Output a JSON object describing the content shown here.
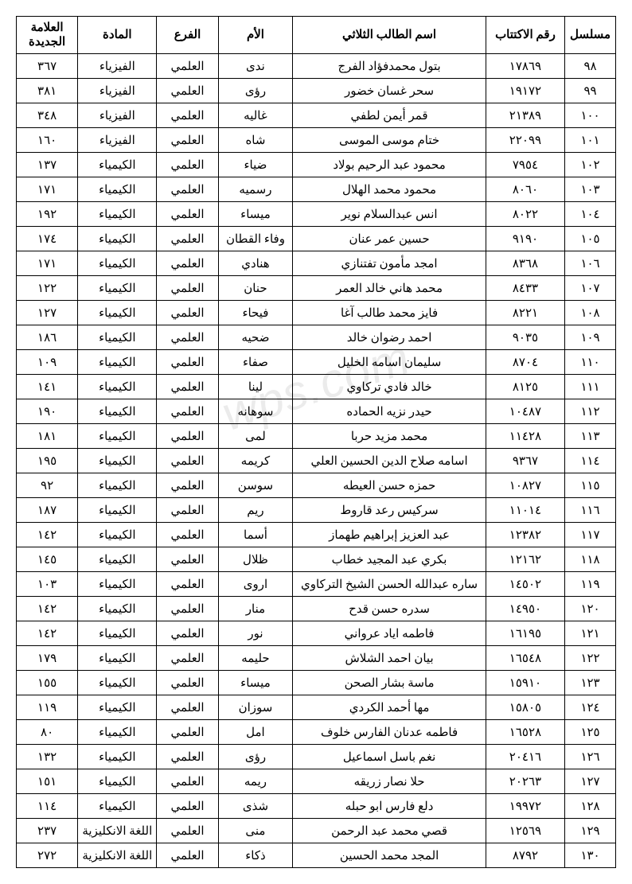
{
  "watermark": "wps.com",
  "headers": {
    "serial": "مسلسل",
    "subscription": "رقم الاكتتاب",
    "name": "اسم الطالب الثلاثي",
    "mother": "الأم",
    "branch": "الفرع",
    "subject": "المادة",
    "grade": "العلامة الجديدة"
  },
  "rows": [
    {
      "serial": "٩٨",
      "sub": "١٧٨٦٩",
      "name": "بتول محمدفؤاد الفرج",
      "mother": "ندى",
      "branch": "العلمي",
      "subject": "الفيزياء",
      "grade": "٣٦٧"
    },
    {
      "serial": "٩٩",
      "sub": "١٩١٧٢",
      "name": "سحر غسان خضور",
      "mother": "رؤى",
      "branch": "العلمي",
      "subject": "الفيزياء",
      "grade": "٣٨١"
    },
    {
      "serial": "١٠٠",
      "sub": "٢١٣٨٩",
      "name": "قمر أيمن لطفي",
      "mother": "غاليه",
      "branch": "العلمي",
      "subject": "الفيزياء",
      "grade": "٣٤٨"
    },
    {
      "serial": "١٠١",
      "sub": "٢٢٠٩٩",
      "name": "ختام موسى الموسى",
      "mother": "شاه",
      "branch": "العلمي",
      "subject": "الفيزياء",
      "grade": "١٦٠"
    },
    {
      "serial": "١٠٢",
      "sub": "٧٩٥٤",
      "name": "محمود عبد الرحيم بولاد",
      "mother": "ضياء",
      "branch": "العلمي",
      "subject": "الكيمياء",
      "grade": "١٣٧"
    },
    {
      "serial": "١٠٣",
      "sub": "٨٠٦٠",
      "name": "محمود محمد الهلال",
      "mother": "رسميه",
      "branch": "العلمي",
      "subject": "الكيمياء",
      "grade": "١٧١"
    },
    {
      "serial": "١٠٤",
      "sub": "٨٠٢٢",
      "name": "انس عبدالسلام نوير",
      "mother": "ميساء",
      "branch": "العلمي",
      "subject": "الكيمياء",
      "grade": "١٩٢"
    },
    {
      "serial": "١٠٥",
      "sub": "٩١٩٠",
      "name": "حسين عمر عنان",
      "mother": "وفاء القطان",
      "branch": "العلمي",
      "subject": "الكيمياء",
      "grade": "١٧٤"
    },
    {
      "serial": "١٠٦",
      "sub": "٨٣٦٨",
      "name": "امجد مأمون تفتنازي",
      "mother": "هنادي",
      "branch": "العلمي",
      "subject": "الكيمياء",
      "grade": "١٧١"
    },
    {
      "serial": "١٠٧",
      "sub": "٨٤٣٣",
      "name": "محمد هاني خالد العمر",
      "mother": "حنان",
      "branch": "العلمي",
      "subject": "الكيمياء",
      "grade": "١٢٢"
    },
    {
      "serial": "١٠٨",
      "sub": "٨٢٢١",
      "name": "فايز محمد طالب آغا",
      "mother": "فيحاء",
      "branch": "العلمي",
      "subject": "الكيمياء",
      "grade": "١٢٧"
    },
    {
      "serial": "١٠٩",
      "sub": "٩٠٣٥",
      "name": "احمد رضوان خالد",
      "mother": "ضحيه",
      "branch": "العلمي",
      "subject": "الكيمياء",
      "grade": "١٨٦"
    },
    {
      "serial": "١١٠",
      "sub": "٨٧٠٤",
      "name": "سليمان اسامه الخليل",
      "mother": "صفاء",
      "branch": "العلمي",
      "subject": "الكيمياء",
      "grade": "١٠٩"
    },
    {
      "serial": "١١١",
      "sub": "٨١٢٥",
      "name": "خالد فادي تركاوي",
      "mother": "لينا",
      "branch": "العلمي",
      "subject": "الكيمياء",
      "grade": "١٤١"
    },
    {
      "serial": "١١٢",
      "sub": "١٠٤٨٧",
      "name": "حيدر نزيه الحماده",
      "mother": "سوهانه",
      "branch": "العلمي",
      "subject": "الكيمياء",
      "grade": "١٩٠"
    },
    {
      "serial": "١١٣",
      "sub": "١١٤٢٨",
      "name": "محمد مزيد حربا",
      "mother": "لمى",
      "branch": "العلمي",
      "subject": "الكيمياء",
      "grade": "١٨١"
    },
    {
      "serial": "١١٤",
      "sub": "٩٣٦٧",
      "name": "اسامه صلاح الدين الحسين العلي",
      "mother": "كريمه",
      "branch": "العلمي",
      "subject": "الكيمياء",
      "grade": "١٩٥"
    },
    {
      "serial": "١١٥",
      "sub": "١٠٨٢٧",
      "name": "حمزه حسن العيطه",
      "mother": "سوسن",
      "branch": "العلمي",
      "subject": "الكيمياء",
      "grade": "٩٢"
    },
    {
      "serial": "١١٦",
      "sub": "١١٠١٤",
      "name": "سركيس رعد قاروط",
      "mother": "ريم",
      "branch": "العلمي",
      "subject": "الكيمياء",
      "grade": "١٨٧"
    },
    {
      "serial": "١١٧",
      "sub": "١٢٣٨٢",
      "name": "عبد العزيز إبراهيم طهماز",
      "mother": "أسما",
      "branch": "العلمي",
      "subject": "الكيمياء",
      "grade": "١٤٢"
    },
    {
      "serial": "١١٨",
      "sub": "١٢١٦٢",
      "name": "بكري عبد المجيد خطاب",
      "mother": "ظلال",
      "branch": "العلمي",
      "subject": "الكيمياء",
      "grade": "١٤٥"
    },
    {
      "serial": "١١٩",
      "sub": "١٤٥٠٢",
      "name": "ساره عبدالله الحسن الشيخ التركاوي",
      "mother": "اروى",
      "branch": "العلمي",
      "subject": "الكيمياء",
      "grade": "١٠٣"
    },
    {
      "serial": "١٢٠",
      "sub": "١٤٩٥٠",
      "name": "سدره حسن قدح",
      "mother": "منار",
      "branch": "العلمي",
      "subject": "الكيمياء",
      "grade": "١٤٢"
    },
    {
      "serial": "١٢١",
      "sub": "١٦١٩٥",
      "name": "فاطمه اياد عرواني",
      "mother": "نور",
      "branch": "العلمي",
      "subject": "الكيمياء",
      "grade": "١٤٢"
    },
    {
      "serial": "١٢٢",
      "sub": "١٦٥٤٨",
      "name": "بيان احمد الشلاش",
      "mother": "حليمه",
      "branch": "العلمي",
      "subject": "الكيمياء",
      "grade": "١٧٩"
    },
    {
      "serial": "١٢٣",
      "sub": "١٥٩١٠",
      "name": "ماسة بشار الصحن",
      "mother": "ميساء",
      "branch": "العلمي",
      "subject": "الكيمياء",
      "grade": "١٥٥"
    },
    {
      "serial": "١٢٤",
      "sub": "١٥٨٠٥",
      "name": "مها أحمد الكردي",
      "mother": "سوزان",
      "branch": "العلمي",
      "subject": "الكيمياء",
      "grade": "١١٩"
    },
    {
      "serial": "١٢٥",
      "sub": "١٦٥٢٨",
      "name": "فاطمه عدنان الفارس خلوف",
      "mother": "امل",
      "branch": "العلمي",
      "subject": "الكيمياء",
      "grade": "٨٠"
    },
    {
      "serial": "١٢٦",
      "sub": "٢٠٤١٦",
      "name": "نغم باسل اسماعيل",
      "mother": "رؤى",
      "branch": "العلمي",
      "subject": "الكيمياء",
      "grade": "١٣٢"
    },
    {
      "serial": "١٢٧",
      "sub": "٢٠٢٦٣",
      "name": "حلا نصار زريقه",
      "mother": "ريمه",
      "branch": "العلمي",
      "subject": "الكيمياء",
      "grade": "١٥١"
    },
    {
      "serial": "١٢٨",
      "sub": "١٩٩٧٢",
      "name": "دلع فارس ابو حبله",
      "mother": "شذى",
      "branch": "العلمي",
      "subject": "الكيمياء",
      "grade": "١١٤"
    },
    {
      "serial": "١٢٩",
      "sub": "١٢٥٦٩",
      "name": "قصي محمد عبد الرحمن",
      "mother": "منى",
      "branch": "العلمي",
      "subject": "اللغة الانكليزية",
      "grade": "٢٣٧"
    },
    {
      "serial": "١٣٠",
      "sub": "٨٧٩٢",
      "name": "المجد محمد الحسين",
      "mother": "ذكاء",
      "branch": "العلمي",
      "subject": "اللغة الانكليزية",
      "grade": "٢٧٢"
    }
  ]
}
